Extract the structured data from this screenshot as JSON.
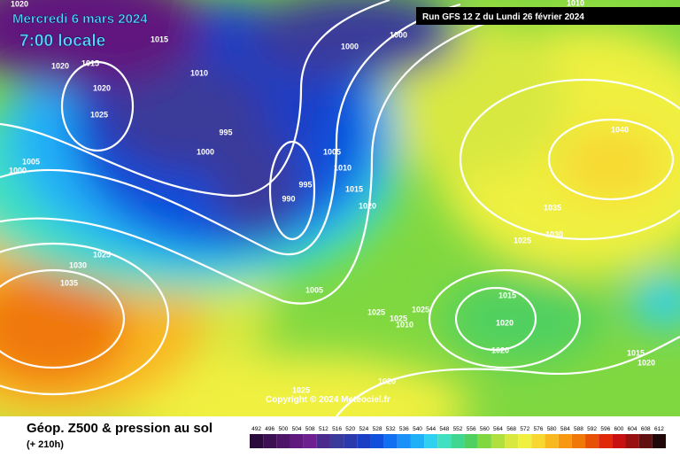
{
  "header": {
    "date": "Mercredi 6 mars 2024",
    "time": "7:00 locale",
    "run": "Run GFS 12 Z du Lundi 26 février 2024"
  },
  "copyright": "Copyright © 2024 Meteociel.fr",
  "footer": {
    "title": "Géop. Z500 & pression au sol",
    "lead": "(+ 210h)"
  },
  "isobars": [
    1020,
    1010,
    1015,
    1000,
    1000,
    1020,
    1015,
    1010,
    1020,
    1025,
    995,
    1000,
    1040,
    1005,
    1000,
    1005,
    1010,
    995,
    1015,
    990,
    1020,
    1035,
    1025,
    1030,
    1025,
    1030,
    1035,
    1005,
    1015,
    1025,
    1025,
    1025,
    1010,
    1020,
    1020,
    1015,
    1020,
    1020,
    1025
  ],
  "colorbar": [
    {
      "value": 492,
      "color": "#2a0a3a"
    },
    {
      "value": 496,
      "color": "#3c0f52"
    },
    {
      "value": 500,
      "color": "#4e1468"
    },
    {
      "value": 504,
      "color": "#60197e"
    },
    {
      "value": 508,
      "color": "#6e2090"
    },
    {
      "value": 512,
      "color": "#4a2a8c"
    },
    {
      "value": 516,
      "color": "#3a3a9a"
    },
    {
      "value": 520,
      "color": "#2a3aac"
    },
    {
      "value": 524,
      "color": "#1a3ec4"
    },
    {
      "value": 528,
      "color": "#1050dc"
    },
    {
      "value": 532,
      "color": "#1070f0"
    },
    {
      "value": 536,
      "color": "#1a90f8"
    },
    {
      "value": 540,
      "color": "#20b0f8"
    },
    {
      "value": 544,
      "color": "#30d0f0"
    },
    {
      "value": 548,
      "color": "#40e0c0"
    },
    {
      "value": 552,
      "color": "#40d890"
    },
    {
      "value": 556,
      "color": "#50d060"
    },
    {
      "value": 560,
      "color": "#80d840"
    },
    {
      "value": 564,
      "color": "#b0e040"
    },
    {
      "value": 568,
      "color": "#d8e840"
    },
    {
      "value": 572,
      "color": "#f0f040"
    },
    {
      "value": 576,
      "color": "#f8d830"
    },
    {
      "value": 580,
      "color": "#f8b820"
    },
    {
      "value": 584,
      "color": "#f89810"
    },
    {
      "value": 588,
      "color": "#f07808"
    },
    {
      "value": 592,
      "color": "#e85008"
    },
    {
      "value": 596,
      "color": "#e02808"
    },
    {
      "value": 600,
      "color": "#c81010"
    },
    {
      "value": 604,
      "color": "#981010"
    },
    {
      "value": 608,
      "color": "#601010"
    },
    {
      "value": 612,
      "color": "#200808"
    }
  ]
}
